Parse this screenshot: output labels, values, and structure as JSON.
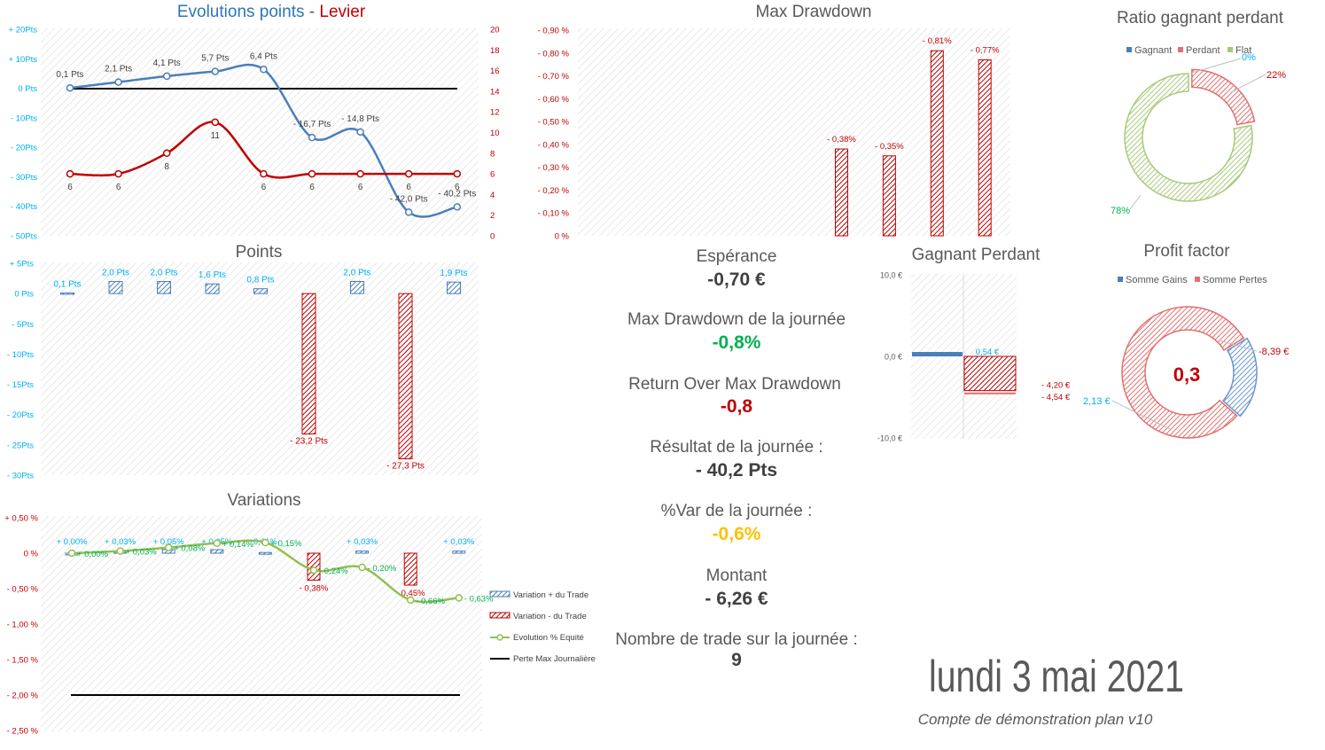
{
  "colors": {
    "blue": "#4a7ebb",
    "red": "#c00000",
    "green": "#00b050",
    "orange": "#ffc000",
    "cyan": "#00b0f0",
    "olive": "#8db84a",
    "gray": "#595959",
    "grid": "#d9d9d9"
  },
  "chart_data": [
    {
      "id": "evolutions",
      "type": "line",
      "title_part1": "Evolutions points",
      "title_sep": " - ",
      "title_part2": "Levier",
      "y_ticks": [
        "+ 20Pts",
        "+ 10Pts",
        "0 Pts",
        "- 10Pts",
        "- 20Pts",
        "- 30Pts",
        "- 40Pts",
        "- 50Pts"
      ],
      "y2_ticks": [
        "20",
        "18",
        "16",
        "14",
        "12",
        "10",
        "8",
        "6",
        "4",
        "2",
        "0"
      ],
      "ylim": [
        -50,
        20
      ],
      "y2lim": [
        0,
        20
      ],
      "x": [
        1,
        2,
        3,
        4,
        5,
        6,
        7,
        8,
        9
      ],
      "series": [
        {
          "name": "Points",
          "axis": "left",
          "values": [
            0.1,
            2.1,
            4.1,
            5.7,
            6.4,
            -16.7,
            -14.8,
            -42.0,
            -40.2
          ],
          "labels": [
            "0,1 Pts",
            "2,1 Pts",
            "4,1 Pts",
            "5,7 Pts",
            "6,4 Pts",
            "- 16,7 Pts",
            "- 14,8 Pts",
            "- 42,0 Pts",
            "- 40,2 Pts"
          ]
        },
        {
          "name": "Levier",
          "axis": "right",
          "values": [
            6,
            6,
            8,
            11,
            6,
            6,
            6,
            6,
            6
          ],
          "labels": [
            "6",
            "6",
            "8",
            "11",
            "6",
            "6",
            "6",
            "6",
            "6"
          ]
        }
      ]
    },
    {
      "id": "points",
      "type": "bar",
      "title": "Points",
      "y_ticks": [
        "+ 5Pts",
        "0 Pts",
        "- 5Pts",
        "- 10Pts",
        "- 15Pts",
        "- 20Pts",
        "- 25Pts",
        "- 30Pts"
      ],
      "ylim": [
        -30,
        5
      ],
      "values": [
        0.1,
        2.0,
        2.0,
        1.6,
        0.8,
        -23.2,
        2.0,
        -27.3,
        1.9
      ],
      "labels": [
        "0,1 Pts",
        "2,0 Pts",
        "2,0 Pts",
        "1,6 Pts",
        "0,8 Pts",
        "- 23,2 Pts",
        "2,0 Pts",
        "- 27,3 Pts",
        "1,9 Pts"
      ]
    },
    {
      "id": "variations",
      "type": "bar",
      "title": "Variations",
      "y_ticks": [
        "+ 0,50 %",
        "0 %",
        "- 0,50 %",
        "- 1,00 %",
        "- 1,50 %",
        "- 2,00 %",
        "- 2,50 %"
      ],
      "ylim": [
        -2.5,
        0.5
      ],
      "bar_values": [
        0.0,
        0.03,
        0.05,
        0.05,
        0.01,
        -0.38,
        0.03,
        -0.45,
        0.03
      ],
      "bar_labels": [
        "+ 0,00%",
        "+ 0,03%",
        "+ 0,05%",
        "+ 0,05%",
        "0,01%",
        "- 0,38%",
        "+ 0,03%",
        "- 0,45%",
        "+ 0,03%"
      ],
      "equity_values": [
        0.0,
        0.03,
        0.08,
        0.14,
        0.15,
        -0.24,
        -0.2,
        -0.66,
        -0.63
      ],
      "equity_labels": [
        "+ 0,00%",
        "+ 0,03%",
        "+ 0,08%",
        "+ 0,14%",
        "+ 0,15%",
        "- 0,24%",
        "- 0,20%",
        "- 0,66%",
        "- 0,63%"
      ],
      "max_loss": -2.0,
      "legend": [
        "Variation + du Trade",
        "Variation - du Trade",
        "Evolution % Equité",
        "Perte Max Journalière"
      ]
    },
    {
      "id": "max_drawdown",
      "type": "bar",
      "title": "Max Drawdown",
      "y_ticks": [
        "- 0,90 %",
        "- 0,80 %",
        "- 0,70 %",
        "- 0,60 %",
        "- 0,50 %",
        "- 0,40 %",
        "- 0,30 %",
        "- 0,20 %",
        "- 0,10 %",
        "0 %"
      ],
      "ylim": [
        0,
        0.9
      ],
      "values": [
        0,
        0,
        0,
        0,
        0,
        0.38,
        0.35,
        0.81,
        0.77
      ],
      "labels": [
        "",
        "",
        "",
        "",
        "",
        "- 0,38%",
        "- 0,35%",
        "- 0,81%",
        "- 0,77%"
      ]
    },
    {
      "id": "ratio",
      "type": "pie",
      "title": "Ratio gagnant perdant",
      "legend": [
        "Gagnant",
        "Perdant",
        "Flat"
      ],
      "values": [
        78,
        22,
        0
      ],
      "labels": [
        "78%",
        "22%",
        "0%"
      ]
    },
    {
      "id": "gagnant_perdant",
      "type": "bar",
      "title": "Gagnant Perdant",
      "y_ticks": [
        "10,0 €",
        "0,0 €",
        "-10,0 €"
      ],
      "ylim": [
        -10,
        10
      ],
      "gain_avg": 0.54,
      "loss_avg": -4.2,
      "loss_max": -4.54,
      "labels": [
        "0,54 €",
        "- 4,20 €",
        "- 4,54 €"
      ]
    },
    {
      "id": "profit_factor",
      "type": "pie",
      "title": "Profit factor",
      "legend": [
        "Somme Gains",
        "Somme Pertes"
      ],
      "values": [
        2.13,
        8.39
      ],
      "labels": [
        "2,13 €",
        "-8,39 €"
      ],
      "center": "0,3"
    }
  ],
  "stats": {
    "esperance_label": "Espérance",
    "esperance_value": "-0,70 €",
    "maxdd_label": "Max Drawdown de la journée",
    "maxdd_value": "-0,8%",
    "romd_label": "Return Over Max Drawdown",
    "romd_value": "-0,8",
    "resultat_label": "Résultat de la journée :",
    "resultat_value": "- 40,2 Pts",
    "var_label": "%Var de la journée :",
    "var_value": "-0,6%",
    "montant_label": "Montant",
    "montant_value": "- 6,26 €",
    "trades_label": "Nombre de trade sur la journée :",
    "trades_value": "9"
  },
  "date": "lundi 3 mai 2021",
  "account": "Compte de démonstration plan v10"
}
